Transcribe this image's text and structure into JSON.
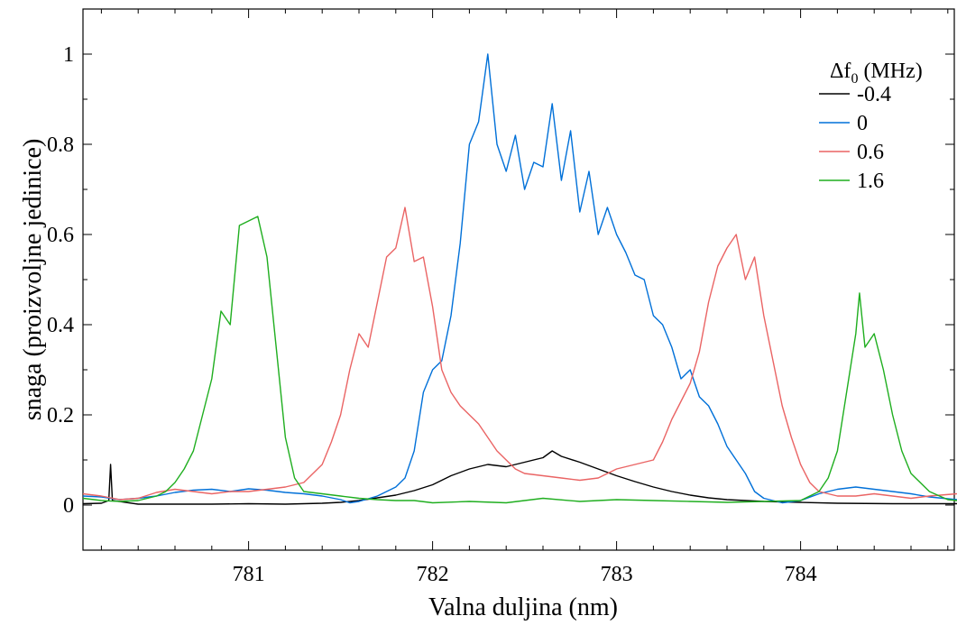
{
  "chart_data": {
    "type": "line",
    "title": "",
    "xlabel": "Valna duljina (nm)",
    "ylabel": "snaga (proizvoljne jedinice)",
    "xlim": [
      780.1,
      784.85
    ],
    "ylim": [
      -0.1,
      1.1
    ],
    "xticks": [
      781,
      782,
      783,
      784
    ],
    "xtick_labels": [
      "781",
      "782",
      "783",
      "784"
    ],
    "yticks": [
      0,
      0.2,
      0.4,
      0.6,
      0.8,
      1
    ],
    "ytick_labels": [
      "0",
      "0.2",
      "0.4",
      "0.6",
      "0.8",
      "1"
    ],
    "grid": false,
    "legend": {
      "title_base": "Δf",
      "title_sub": "0",
      "title_suffix": " (MHz)",
      "position": "top-right"
    },
    "series": [
      {
        "name": "-0.4",
        "color": "#000000",
        "points": [
          [
            780.1,
            0.003
          ],
          [
            780.2,
            0.004
          ],
          [
            780.24,
            0.01
          ],
          [
            780.25,
            0.09
          ],
          [
            780.26,
            0.01
          ],
          [
            780.4,
            0.002
          ],
          [
            780.6,
            0.002
          ],
          [
            780.8,
            0.002
          ],
          [
            781.0,
            0.003
          ],
          [
            781.2,
            0.002
          ],
          [
            781.4,
            0.004
          ],
          [
            781.5,
            0.006
          ],
          [
            781.6,
            0.01
          ],
          [
            781.7,
            0.016
          ],
          [
            781.8,
            0.022
          ],
          [
            781.9,
            0.032
          ],
          [
            782.0,
            0.045
          ],
          [
            782.1,
            0.065
          ],
          [
            782.2,
            0.08
          ],
          [
            782.3,
            0.09
          ],
          [
            782.4,
            0.085
          ],
          [
            782.5,
            0.095
          ],
          [
            782.6,
            0.105
          ],
          [
            782.65,
            0.12
          ],
          [
            782.7,
            0.108
          ],
          [
            782.8,
            0.095
          ],
          [
            782.9,
            0.08
          ],
          [
            783.0,
            0.065
          ],
          [
            783.1,
            0.052
          ],
          [
            783.2,
            0.04
          ],
          [
            783.3,
            0.03
          ],
          [
            783.4,
            0.022
          ],
          [
            783.5,
            0.016
          ],
          [
            783.6,
            0.012
          ],
          [
            783.8,
            0.008
          ],
          [
            784.0,
            0.006
          ],
          [
            784.2,
            0.004
          ],
          [
            784.5,
            0.003
          ],
          [
            784.85,
            0.003
          ]
        ]
      },
      {
        "name": "0",
        "color": "#0070d8",
        "points": [
          [
            780.1,
            0.02
          ],
          [
            780.2,
            0.018
          ],
          [
            780.3,
            0.012
          ],
          [
            780.4,
            0.015
          ],
          [
            780.5,
            0.02
          ],
          [
            780.6,
            0.028
          ],
          [
            780.7,
            0.033
          ],
          [
            780.8,
            0.035
          ],
          [
            780.9,
            0.03
          ],
          [
            781.0,
            0.036
          ],
          [
            781.1,
            0.033
          ],
          [
            781.2,
            0.028
          ],
          [
            781.3,
            0.025
          ],
          [
            781.4,
            0.02
          ],
          [
            781.5,
            0.012
          ],
          [
            781.55,
            0.005
          ],
          [
            781.6,
            0.008
          ],
          [
            781.7,
            0.02
          ],
          [
            781.8,
            0.04
          ],
          [
            781.85,
            0.06
          ],
          [
            781.9,
            0.12
          ],
          [
            781.95,
            0.25
          ],
          [
            782.0,
            0.3
          ],
          [
            782.05,
            0.32
          ],
          [
            782.1,
            0.42
          ],
          [
            782.15,
            0.58
          ],
          [
            782.2,
            0.8
          ],
          [
            782.25,
            0.85
          ],
          [
            782.3,
            1.0
          ],
          [
            782.35,
            0.8
          ],
          [
            782.4,
            0.74
          ],
          [
            782.45,
            0.82
          ],
          [
            782.5,
            0.7
          ],
          [
            782.55,
            0.76
          ],
          [
            782.6,
            0.75
          ],
          [
            782.65,
            0.89
          ],
          [
            782.7,
            0.72
          ],
          [
            782.75,
            0.83
          ],
          [
            782.8,
            0.65
          ],
          [
            782.85,
            0.74
          ],
          [
            782.9,
            0.6
          ],
          [
            782.95,
            0.66
          ],
          [
            783.0,
            0.6
          ],
          [
            783.05,
            0.56
          ],
          [
            783.1,
            0.51
          ],
          [
            783.15,
            0.5
          ],
          [
            783.2,
            0.42
          ],
          [
            783.25,
            0.4
          ],
          [
            783.3,
            0.35
          ],
          [
            783.35,
            0.28
          ],
          [
            783.4,
            0.3
          ],
          [
            783.45,
            0.24
          ],
          [
            783.5,
            0.22
          ],
          [
            783.55,
            0.18
          ],
          [
            783.6,
            0.13
          ],
          [
            783.65,
            0.1
          ],
          [
            783.7,
            0.07
          ],
          [
            783.75,
            0.03
          ],
          [
            783.8,
            0.015
          ],
          [
            783.85,
            0.01
          ],
          [
            783.9,
            0.005
          ],
          [
            784.0,
            0.01
          ],
          [
            784.1,
            0.025
          ],
          [
            784.2,
            0.035
          ],
          [
            784.3,
            0.04
          ],
          [
            784.4,
            0.035
          ],
          [
            784.5,
            0.03
          ],
          [
            784.6,
            0.025
          ],
          [
            784.7,
            0.018
          ],
          [
            784.85,
            0.012
          ]
        ]
      },
      {
        "name": "0.6",
        "color": "#ea6464",
        "points": [
          [
            780.1,
            0.025
          ],
          [
            780.2,
            0.02
          ],
          [
            780.3,
            0.012
          ],
          [
            780.4,
            0.015
          ],
          [
            780.5,
            0.028
          ],
          [
            780.6,
            0.035
          ],
          [
            780.7,
            0.03
          ],
          [
            780.8,
            0.025
          ],
          [
            780.9,
            0.03
          ],
          [
            781.0,
            0.03
          ],
          [
            781.1,
            0.035
          ],
          [
            781.2,
            0.04
          ],
          [
            781.25,
            0.045
          ],
          [
            781.3,
            0.05
          ],
          [
            781.35,
            0.07
          ],
          [
            781.4,
            0.09
          ],
          [
            781.45,
            0.14
          ],
          [
            781.5,
            0.2
          ],
          [
            781.55,
            0.3
          ],
          [
            781.6,
            0.38
          ],
          [
            781.65,
            0.35
          ],
          [
            781.7,
            0.45
          ],
          [
            781.75,
            0.55
          ],
          [
            781.8,
            0.57
          ],
          [
            781.85,
            0.66
          ],
          [
            781.9,
            0.54
          ],
          [
            781.95,
            0.55
          ],
          [
            782.0,
            0.44
          ],
          [
            782.05,
            0.3
          ],
          [
            782.1,
            0.25
          ],
          [
            782.15,
            0.22
          ],
          [
            782.2,
            0.2
          ],
          [
            782.25,
            0.18
          ],
          [
            782.3,
            0.15
          ],
          [
            782.35,
            0.12
          ],
          [
            782.4,
            0.1
          ],
          [
            782.45,
            0.08
          ],
          [
            782.5,
            0.07
          ],
          [
            782.6,
            0.065
          ],
          [
            782.7,
            0.06
          ],
          [
            782.8,
            0.055
          ],
          [
            782.9,
            0.06
          ],
          [
            783.0,
            0.08
          ],
          [
            783.1,
            0.09
          ],
          [
            783.2,
            0.1
          ],
          [
            783.25,
            0.14
          ],
          [
            783.3,
            0.19
          ],
          [
            783.35,
            0.23
          ],
          [
            783.4,
            0.27
          ],
          [
            783.45,
            0.34
          ],
          [
            783.5,
            0.45
          ],
          [
            783.55,
            0.53
          ],
          [
            783.6,
            0.57
          ],
          [
            783.65,
            0.6
          ],
          [
            783.7,
            0.5
          ],
          [
            783.75,
            0.55
          ],
          [
            783.8,
            0.42
          ],
          [
            783.85,
            0.32
          ],
          [
            783.9,
            0.22
          ],
          [
            783.95,
            0.15
          ],
          [
            784.0,
            0.09
          ],
          [
            784.05,
            0.05
          ],
          [
            784.1,
            0.03
          ],
          [
            784.2,
            0.02
          ],
          [
            784.3,
            0.02
          ],
          [
            784.4,
            0.025
          ],
          [
            784.5,
            0.02
          ],
          [
            784.6,
            0.015
          ],
          [
            784.7,
            0.02
          ],
          [
            784.85,
            0.025
          ]
        ]
      },
      {
        "name": "1.6",
        "color": "#1fae1f",
        "points": [
          [
            780.1,
            0.015
          ],
          [
            780.2,
            0.01
          ],
          [
            780.3,
            0.008
          ],
          [
            780.4,
            0.01
          ],
          [
            780.5,
            0.02
          ],
          [
            780.55,
            0.03
          ],
          [
            780.6,
            0.05
          ],
          [
            780.65,
            0.08
          ],
          [
            780.7,
            0.12
          ],
          [
            780.75,
            0.2
          ],
          [
            780.8,
            0.28
          ],
          [
            780.85,
            0.43
          ],
          [
            780.9,
            0.4
          ],
          [
            780.95,
            0.62
          ],
          [
            781.0,
            0.63
          ],
          [
            781.05,
            0.64
          ],
          [
            781.1,
            0.55
          ],
          [
            781.15,
            0.35
          ],
          [
            781.2,
            0.15
          ],
          [
            781.25,
            0.06
          ],
          [
            781.3,
            0.03
          ],
          [
            781.4,
            0.025
          ],
          [
            781.5,
            0.02
          ],
          [
            781.6,
            0.015
          ],
          [
            781.7,
            0.012
          ],
          [
            781.8,
            0.01
          ],
          [
            781.9,
            0.01
          ],
          [
            782.0,
            0.005
          ],
          [
            782.2,
            0.008
          ],
          [
            782.4,
            0.005
          ],
          [
            782.6,
            0.015
          ],
          [
            782.8,
            0.008
          ],
          [
            783.0,
            0.012
          ],
          [
            783.2,
            0.01
          ],
          [
            783.4,
            0.008
          ],
          [
            783.6,
            0.006
          ],
          [
            783.8,
            0.008
          ],
          [
            784.0,
            0.01
          ],
          [
            784.1,
            0.03
          ],
          [
            784.15,
            0.06
          ],
          [
            784.2,
            0.12
          ],
          [
            784.25,
            0.25
          ],
          [
            784.3,
            0.38
          ],
          [
            784.32,
            0.47
          ],
          [
            784.35,
            0.35
          ],
          [
            784.4,
            0.38
          ],
          [
            784.45,
            0.3
          ],
          [
            784.5,
            0.2
          ],
          [
            784.55,
            0.12
          ],
          [
            784.6,
            0.07
          ],
          [
            784.7,
            0.03
          ],
          [
            784.8,
            0.012
          ],
          [
            784.85,
            0.01
          ]
        ]
      }
    ]
  }
}
